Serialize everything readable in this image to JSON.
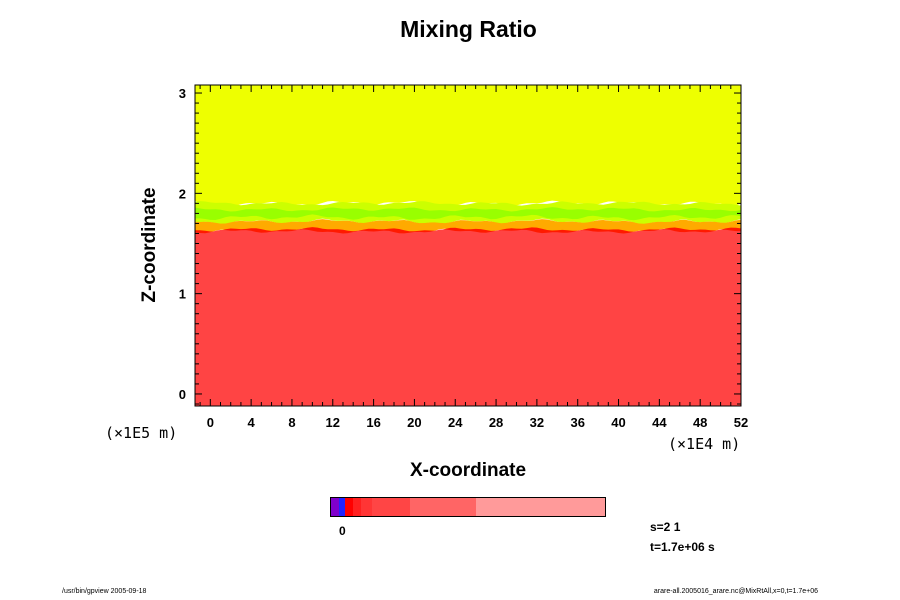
{
  "chart_data": {
    "type": "heatmap",
    "title": "Mixing Ratio",
    "xlabel": "X-coordinate",
    "ylabel": "Z-coordinate",
    "x_unit": "(×1E4 m)",
    "y_unit": "(×1E5 m)",
    "xlim": [
      -1.5,
      52
    ],
    "ylim": [
      -0.12,
      3.08
    ],
    "x_ticks": [
      "0",
      "4",
      "8",
      "12",
      "16",
      "20",
      "24",
      "28",
      "32",
      "36",
      "40",
      "44",
      "48",
      "52"
    ],
    "y_ticks": [
      "0",
      "1",
      "2",
      "3"
    ],
    "x_minor_step": 1,
    "y_minor_step": 0.1,
    "layers": [
      {
        "name": "upper",
        "z_min": 1.9,
        "z_max": 3.08,
        "color": "#eeff00"
      },
      {
        "name": "transition-yellowgreen",
        "z_min": 1.72,
        "z_max": 1.9,
        "color": "#ccff00"
      },
      {
        "name": "transition-green",
        "z_min": 1.76,
        "z_max": 1.84,
        "color": "#99ff00"
      },
      {
        "name": "transition-orange",
        "z_min": 1.62,
        "z_max": 1.72,
        "color": "#ffaa00"
      },
      {
        "name": "transition-red",
        "z_min": 1.45,
        "z_max": 1.64,
        "color": "#ff1a00"
      },
      {
        "name": "lower",
        "z_min": -0.12,
        "z_max": 1.62,
        "color": "#ff4444"
      }
    ],
    "colorbar": {
      "zero_label": "0",
      "segments": [
        {
          "color": "#7f00cc",
          "frac": 0.03
        },
        {
          "color": "#2222ff",
          "frac": 0.02
        },
        {
          "color": "#ff0000",
          "frac": 0.03
        },
        {
          "color": "#ff2020",
          "frac": 0.03
        },
        {
          "color": "#ff3535",
          "frac": 0.04
        },
        {
          "color": "#ff4545",
          "frac": 0.14
        },
        {
          "color": "#ff6565",
          "frac": 0.24
        },
        {
          "color": "#ff9a9a",
          "frac": 0.47
        }
      ]
    }
  },
  "info": {
    "s_label": "s=2 1",
    "t_label": "t=1.7e+06 s"
  },
  "footer": {
    "left": "/usr/bin/gpview 2005-09-18",
    "right": "arare-all.2005016_arare.nc@MixRtAll,x=0,t=1.7e+06"
  }
}
